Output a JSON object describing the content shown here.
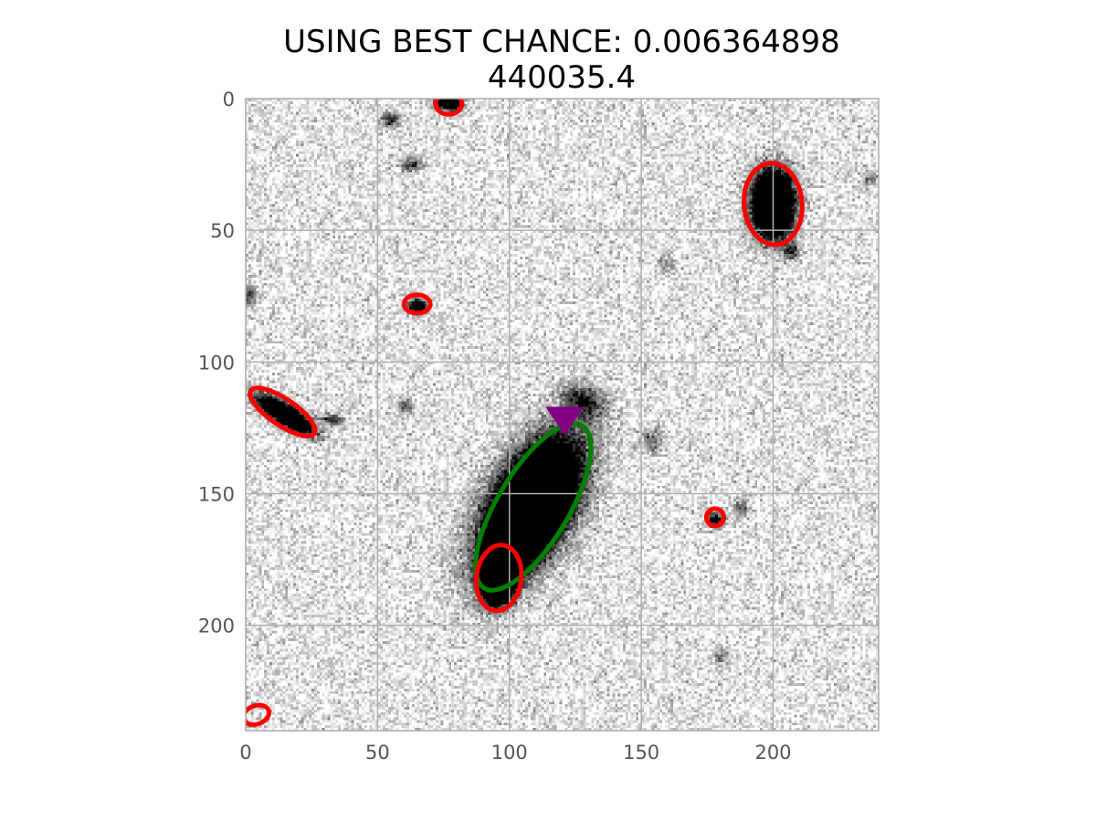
{
  "chart_data": {
    "type": "image",
    "title_lines": [
      "USING BEST CHANCE: 0.006364898",
      "440035.4"
    ],
    "xlabel": "",
    "ylabel": "",
    "xlim": [
      0,
      240
    ],
    "ylim": [
      240,
      0
    ],
    "x_ticks": [
      0,
      50,
      100,
      150,
      200
    ],
    "y_ticks": [
      0,
      50,
      100,
      150,
      200
    ],
    "x_tick_labels": [
      "0",
      "50",
      "100",
      "150",
      "200"
    ],
    "y_tick_labels": [
      "0",
      "50",
      "100",
      "150",
      "200"
    ],
    "grid": true,
    "colormap": "gray_r",
    "sources": [
      {
        "x": 108,
        "y": 155,
        "rx": 18,
        "ry": 9,
        "angle": 120,
        "strength": 1.0
      },
      {
        "x": 96,
        "y": 182,
        "rx": 6,
        "ry": 4,
        "angle": 100,
        "strength": 0.9
      },
      {
        "x": 200,
        "y": 40,
        "rx": 8,
        "ry": 5,
        "angle": 90,
        "strength": 1.0
      },
      {
        "x": 15,
        "y": 120,
        "rx": 8,
        "ry": 2.5,
        "angle": 32,
        "strength": 0.7
      },
      {
        "x": 77,
        "y": 1,
        "rx": 3,
        "ry": 2,
        "angle": 0,
        "strength": 0.8
      },
      {
        "x": 65,
        "y": 79,
        "rx": 2.5,
        "ry": 2,
        "angle": 0,
        "strength": 0.45
      },
      {
        "x": 178,
        "y": 160,
        "rx": 2,
        "ry": 2,
        "angle": 0,
        "strength": 0.35
      },
      {
        "x": 55,
        "y": 8,
        "rx": 2.5,
        "ry": 2,
        "angle": 0,
        "strength": 0.25
      },
      {
        "x": 63,
        "y": 25,
        "rx": 3,
        "ry": 2,
        "angle": 0,
        "strength": 0.22
      },
      {
        "x": 1,
        "y": 75,
        "rx": 2,
        "ry": 3,
        "angle": 0,
        "strength": 0.22
      },
      {
        "x": 33,
        "y": 122,
        "rx": 3,
        "ry": 1.5,
        "angle": 0,
        "strength": 0.25
      },
      {
        "x": 61,
        "y": 117,
        "rx": 2,
        "ry": 2,
        "angle": 0,
        "strength": 0.2
      },
      {
        "x": 128,
        "y": 115,
        "rx": 6,
        "ry": 4,
        "angle": 20,
        "strength": 0.25
      },
      {
        "x": 207,
        "y": 58,
        "rx": 2,
        "ry": 2,
        "angle": 0,
        "strength": 0.25
      },
      {
        "x": 188,
        "y": 155,
        "rx": 2,
        "ry": 2,
        "angle": 0,
        "strength": 0.18
      },
      {
        "x": 180,
        "y": 212,
        "rx": 2,
        "ry": 2,
        "angle": 0,
        "strength": 0.15
      },
      {
        "x": 154,
        "y": 130,
        "rx": 3,
        "ry": 3,
        "angle": 0,
        "strength": 0.15
      },
      {
        "x": 160,
        "y": 63,
        "rx": 2,
        "ry": 2,
        "angle": 0,
        "strength": 0.12
      },
      {
        "x": 237,
        "y": 30,
        "rx": 2,
        "ry": 2,
        "angle": 0,
        "strength": 0.15
      }
    ],
    "ellipses": [
      {
        "name": "host-ellipse",
        "color": "#008000",
        "x": 109,
        "y": 155,
        "rx": 36,
        "ry": 13.5,
        "angle": 121
      },
      {
        "name": "source-ellipse",
        "color": "#ff0000",
        "x": 200,
        "y": 40,
        "rx": 15.5,
        "ry": 11,
        "angle": 85
      },
      {
        "name": "source-ellipse",
        "color": "#ff0000",
        "x": 14,
        "y": 119,
        "rx": 14.5,
        "ry": 5,
        "angle": 34
      },
      {
        "name": "source-ellipse",
        "color": "#ff0000",
        "x": 77,
        "y": 2,
        "rx": 5,
        "ry": 4,
        "angle": 0
      },
      {
        "name": "source-ellipse",
        "color": "#ff0000",
        "x": 65,
        "y": 78,
        "rx": 5,
        "ry": 3.5,
        "angle": 0
      },
      {
        "name": "source-ellipse",
        "color": "#ff0000",
        "x": 96,
        "y": 182,
        "rx": 12.5,
        "ry": 8.5,
        "angle": 97
      },
      {
        "name": "source-ellipse",
        "color": "#ff0000",
        "x": 178,
        "y": 159,
        "rx": 3.3,
        "ry": 3.3,
        "angle": 0
      },
      {
        "name": "source-ellipse",
        "color": "#ff0000",
        "x": 4,
        "y": 234,
        "rx": 5,
        "ry": 3.5,
        "angle": -20
      }
    ],
    "markers": [
      {
        "name": "transient-marker",
        "shape": "triangle-down",
        "color": "#800080",
        "x": 121,
        "y": 121
      }
    ],
    "colors": {
      "axes": "#aaaaaa",
      "grid": "#b0b0b0",
      "tick_text": "#555555"
    }
  }
}
